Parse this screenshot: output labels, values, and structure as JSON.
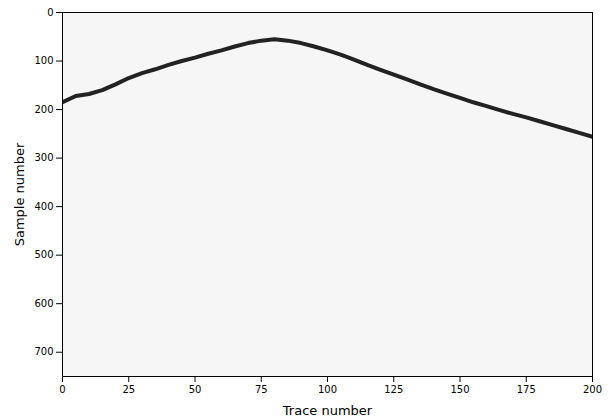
{
  "chart_data": {
    "type": "line",
    "x_label": "Trace number",
    "y_label": "Sample number",
    "x": [
      0,
      5,
      10,
      15,
      20,
      25,
      30,
      35,
      40,
      45,
      50,
      55,
      60,
      65,
      70,
      75,
      80,
      85,
      90,
      95,
      100,
      105,
      110,
      115,
      120,
      125,
      130,
      135,
      140,
      145,
      150,
      155,
      160,
      165,
      170,
      175,
      180,
      185,
      190,
      195,
      200
    ],
    "values": [
      185,
      172,
      168,
      160,
      148,
      135,
      125,
      117,
      108,
      100,
      93,
      85,
      78,
      70,
      63,
      58,
      55,
      58,
      63,
      70,
      78,
      87,
      97,
      108,
      118,
      128,
      138,
      148,
      158,
      167,
      176,
      185,
      193,
      201,
      209,
      216,
      224,
      232,
      240,
      248,
      256
    ],
    "color": "#222222",
    "xlim": [
      0,
      200
    ],
    "xticks": [
      0,
      25,
      50,
      75,
      100,
      125,
      150,
      175,
      200
    ],
    "ylim": [
      750,
      0
    ],
    "yticks": [
      0,
      100,
      200,
      300,
      400,
      500,
      600,
      700
    ],
    "grid": false
  }
}
